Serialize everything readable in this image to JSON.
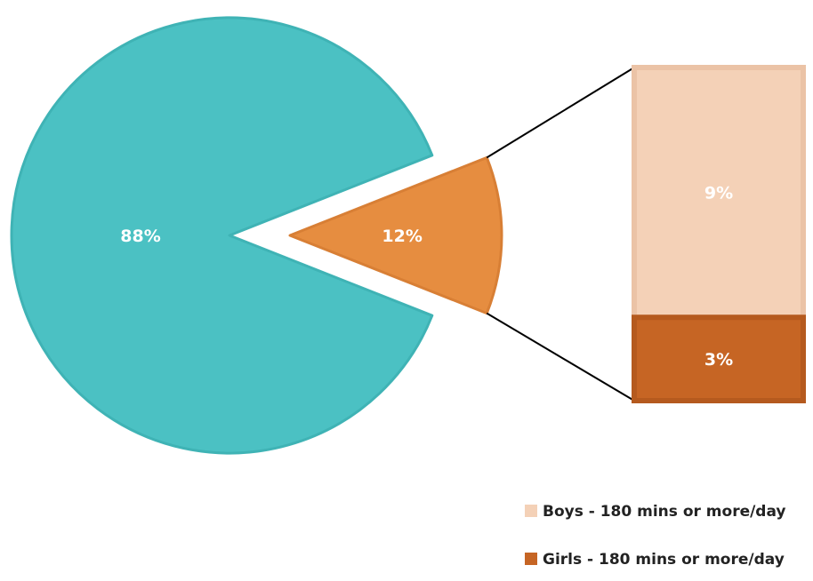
{
  "chart_data": {
    "type": "bar-of-pie",
    "pie": {
      "slices": [
        {
          "value": 88,
          "label": "88%",
          "color": "#4bc1c3",
          "stroke": "#3fb3b5"
        },
        {
          "value": 12,
          "label": "12%",
          "color": "#e68d40",
          "stroke": "#d87f35",
          "exploded": true
        }
      ]
    },
    "bar": {
      "segments": [
        {
          "value": 9,
          "label": "9%",
          "name": "Boys - 180 mins or more/day",
          "color": "#f4d1b7",
          "stroke": "#ebc3a6"
        },
        {
          "value": 3,
          "label": "3%",
          "name": "Girls - 180 mins or more/day",
          "color": "#c66524",
          "stroke": "#b55a1e"
        }
      ]
    },
    "legend": {
      "position": "bottom-right",
      "items": [
        {
          "name": "Boys - 180 mins or more/day",
          "color": "#f4d1b7"
        },
        {
          "name": "Girls - 180 mins or more/day",
          "color": "#c66524"
        }
      ]
    },
    "connector_color": "#000000"
  }
}
